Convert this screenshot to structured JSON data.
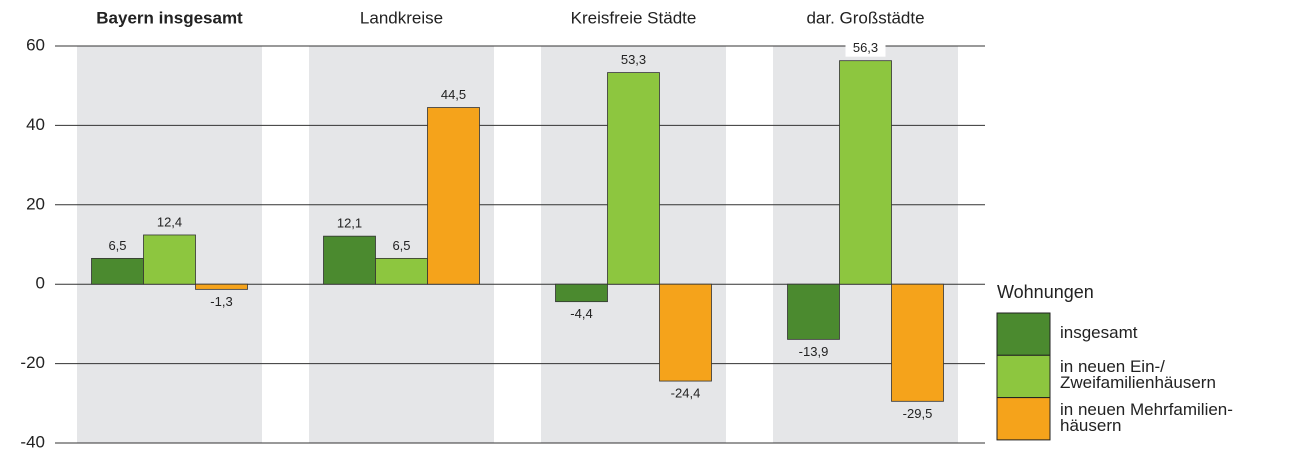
{
  "chart_data": {
    "type": "bar",
    "categories": [
      "Bayern insgesamt",
      "Landkreise",
      "Kreisfreie Städte",
      "dar. Großstädte"
    ],
    "legend_title": "Wohnungen",
    "series": [
      {
        "name": "insgesamt",
        "color": "#4b8a2f",
        "values": [
          6.5,
          12.1,
          -4.4,
          -13.9
        ],
        "value_labels": [
          "6,5",
          "12,1",
          "-4,4",
          "-13,9"
        ]
      },
      {
        "name": "in neuen Ein-/\nZweifamilienhäusern",
        "color": "#8dc63f",
        "values": [
          12.4,
          6.5,
          53.3,
          56.3
        ],
        "value_labels": [
          "12,4",
          "6,5",
          "53,3",
          "56,3"
        ]
      },
      {
        "name": "in neuen Mehrfamilien-\nhäusern",
        "color": "#f5a31b",
        "values": [
          -1.3,
          44.5,
          -24.4,
          -29.5
        ],
        "value_labels": [
          "-1,3",
          "44,5",
          "-24,4",
          "-29,5"
        ]
      }
    ],
    "ylim": [
      -40,
      60
    ],
    "yticks": [
      -40,
      -20,
      0,
      20,
      40,
      60
    ],
    "grid": true
  }
}
